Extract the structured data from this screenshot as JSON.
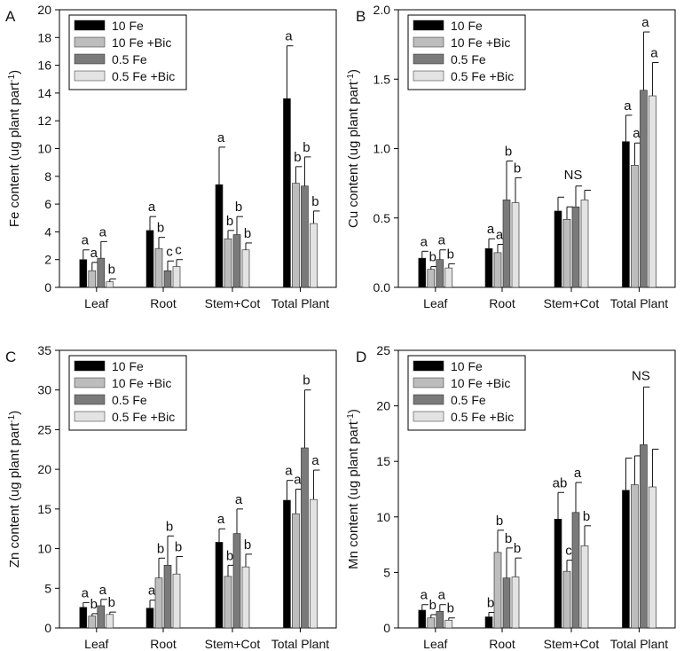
{
  "figure": {
    "legend": [
      {
        "name": "10 Fe",
        "color": "#000000"
      },
      {
        "name": "10 Fe +Bic",
        "color": "#bdbdbd"
      },
      {
        "name": "0.5 Fe",
        "color": "#7a7a7a"
      },
      {
        "name": "0.5 Fe +Bic",
        "color": "#e3e3e3"
      }
    ]
  },
  "chart_data": [
    {
      "type": "bar",
      "panel": "A",
      "categories": [
        "Leaf",
        "Root",
        "Stem+Cot",
        "Total Plant"
      ],
      "ylabel": "Fe content (ug plant part",
      "ylabel_sup": "-1",
      "ylabel_close": ")",
      "ylim": [
        0,
        20
      ],
      "yticks": [
        0,
        2,
        4,
        6,
        8,
        10,
        12,
        14,
        16,
        18,
        20
      ],
      "series": [
        {
          "name": "10 Fe",
          "values": [
            2.0,
            4.1,
            7.4,
            13.6
          ],
          "errors": [
            0.7,
            1.0,
            2.7,
            3.8
          ]
        },
        {
          "name": "10 Fe +Bic",
          "values": [
            1.2,
            2.8,
            3.5,
            7.5
          ],
          "errors": [
            0.6,
            0.8,
            0.6,
            1.2
          ]
        },
        {
          "name": "0.5 Fe",
          "values": [
            2.1,
            1.2,
            3.8,
            7.3
          ],
          "errors": [
            1.2,
            0.7,
            1.3,
            2.1
          ]
        },
        {
          "name": "0.5 Fe +Bic",
          "values": [
            0.4,
            1.5,
            2.7,
            4.6
          ],
          "errors": [
            0.2,
            0.5,
            0.5,
            0.9
          ]
        }
      ],
      "annotations": [
        [
          "a",
          "a",
          "a",
          "b"
        ],
        [
          "a",
          "b",
          "c",
          "c"
        ],
        [
          "a",
          "b",
          "b",
          "b"
        ],
        [
          "a",
          "b",
          "b",
          "b"
        ]
      ],
      "group_annotations": [
        "",
        "",
        "",
        ""
      ]
    },
    {
      "type": "bar",
      "panel": "B",
      "categories": [
        "Leaf",
        "Root",
        "Stem+Cot",
        "Total Plant"
      ],
      "ylabel": "Cu content (ug plant part",
      "ylabel_sup": "-1",
      "ylabel_close": ")",
      "ylim": [
        0,
        2.0
      ],
      "yticks": [
        0.0,
        0.5,
        1.0,
        1.5,
        2.0
      ],
      "ytick_labels": [
        "0.0",
        "0.5",
        "1.0",
        "1.5",
        "2.0"
      ],
      "series": [
        {
          "name": "10 Fe",
          "values": [
            0.21,
            0.28,
            0.55,
            1.05
          ],
          "errors": [
            0.05,
            0.07,
            0.1,
            0.19
          ]
        },
        {
          "name": "10 Fe +Bic",
          "values": [
            0.13,
            0.25,
            0.49,
            0.88
          ],
          "errors": [
            0.02,
            0.06,
            0.09,
            0.16
          ]
        },
        {
          "name": "0.5 Fe",
          "values": [
            0.2,
            0.63,
            0.58,
            1.42
          ],
          "errors": [
            0.07,
            0.28,
            0.15,
            0.42
          ]
        },
        {
          "name": "0.5 Fe +Bic",
          "values": [
            0.14,
            0.61,
            0.63,
            1.38
          ],
          "errors": [
            0.03,
            0.18,
            0.07,
            0.24
          ]
        }
      ],
      "annotations": [
        [
          "a",
          "b",
          "a",
          "b"
        ],
        [
          "a",
          "a",
          "b",
          "b"
        ],
        [
          "",
          "",
          "",
          ""
        ],
        [
          "a",
          "a",
          "a",
          "a"
        ]
      ],
      "group_annotations": [
        "",
        "",
        "NS",
        ""
      ]
    },
    {
      "type": "bar",
      "panel": "C",
      "categories": [
        "Leaf",
        "Root",
        "Stem+Cot",
        "Total Plant"
      ],
      "ylabel": "Zn content (ug plant part",
      "ylabel_sup": "-1",
      "ylabel_close": ")",
      "ylim": [
        0,
        35
      ],
      "yticks": [
        0,
        5,
        10,
        15,
        20,
        25,
        30,
        35
      ],
      "series": [
        {
          "name": "10 Fe",
          "values": [
            2.6,
            2.5,
            10.8,
            16.1
          ],
          "errors": [
            0.6,
            1.0,
            1.7,
            2.5
          ]
        },
        {
          "name": "10 Fe +Bic",
          "values": [
            1.5,
            6.3,
            6.5,
            14.4
          ],
          "errors": [
            0.3,
            2.5,
            1.4,
            3.1
          ]
        },
        {
          "name": "0.5 Fe",
          "values": [
            2.8,
            7.9,
            11.9,
            22.7
          ],
          "errors": [
            0.8,
            3.7,
            3.1,
            7.3
          ]
        },
        {
          "name": "0.5 Fe +Bic",
          "values": [
            1.7,
            6.8,
            7.7,
            16.2
          ],
          "errors": [
            0.3,
            2.2,
            1.6,
            3.7
          ]
        }
      ],
      "annotations": [
        [
          "a",
          "b",
          "a",
          "b"
        ],
        [
          "a",
          "b",
          "b",
          "b"
        ],
        [
          "a",
          "b",
          "a",
          "b"
        ],
        [
          "a",
          "a",
          "b",
          "a"
        ]
      ],
      "group_annotations": [
        "",
        "",
        "",
        ""
      ]
    },
    {
      "type": "bar",
      "panel": "D",
      "categories": [
        "Leaf",
        "Root",
        "Stem+Cot",
        "Total Plant"
      ],
      "ylabel": "Mn content (ug plant part",
      "ylabel_sup": "-1",
      "ylabel_close": ")",
      "ylim": [
        0,
        25
      ],
      "yticks": [
        0,
        5,
        10,
        15,
        20,
        25
      ],
      "series": [
        {
          "name": "10 Fe",
          "values": [
            1.6,
            1.0,
            9.8,
            12.4
          ],
          "errors": [
            0.5,
            0.4,
            2.4,
            2.9
          ]
        },
        {
          "name": "10 Fe +Bic",
          "values": [
            0.9,
            6.8,
            5.1,
            12.9
          ],
          "errors": [
            0.3,
            2.0,
            1.0,
            2.6
          ]
        },
        {
          "name": "0.5 Fe",
          "values": [
            1.5,
            4.5,
            10.4,
            16.5
          ],
          "errors": [
            0.6,
            2.7,
            2.7,
            5.2
          ]
        },
        {
          "name": "0.5 Fe +Bic",
          "values": [
            0.7,
            4.6,
            7.4,
            12.7
          ],
          "errors": [
            0.2,
            1.7,
            1.8,
            3.4
          ]
        }
      ],
      "annotations": [
        [
          "a",
          "b",
          "a",
          "b"
        ],
        [
          "b",
          "b",
          "b",
          "b"
        ],
        [
          "ab",
          "c",
          "a",
          "b"
        ],
        [
          "",
          "",
          "",
          ""
        ]
      ],
      "group_annotations": [
        "",
        "",
        "",
        "NS"
      ]
    }
  ]
}
